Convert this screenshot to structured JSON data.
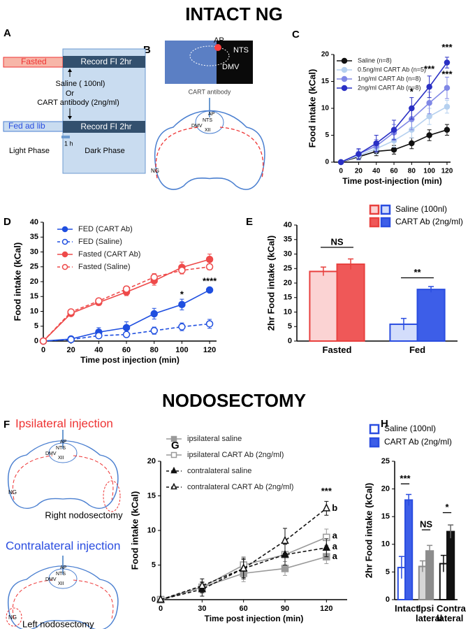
{
  "headings": [
    "INTACT NG",
    "NODOSECTOMY"
  ],
  "panel_labels": [
    "A",
    "B",
    "C",
    "D",
    "E",
    "F",
    "G",
    "H"
  ],
  "diagram_a": {
    "fasted": "Fasted",
    "record_1": "Record FI 2hr",
    "treatment_1": "Saline ( 100nl)",
    "or": "Or",
    "treatment_2": "CART antibody (2ng/ml)",
    "fed": "Fed ad lib",
    "record_2": "Record FI 2hr",
    "hour": "1 h",
    "light": "Light Phase",
    "dark": "Dark Phase"
  },
  "diagram_b": {
    "ap": "AP",
    "nts": "NTS",
    "dmv": "DMV",
    "injection": "CART antibody",
    "ap_2": "AP",
    "nts_2": "NTS",
    "dmv_2": "DMV",
    "xii": "XII",
    "ng": "NG"
  },
  "diagram_f": {
    "ipsi_title": "Ipsilateral injection",
    "ipsi_lesion": "Right nodosectomy",
    "contra_title": "Contralateral injection",
    "contra_lesion": "Left nodosectomy",
    "ap_1": "AP",
    "nts_1": "NTS",
    "dmv_1": "DMV",
    "xii_1": "XII",
    "ng_1": "NG",
    "ap_2": "AP",
    "nts_2": "NTS",
    "dmv_2": "DMV",
    "xii_2": "XII",
    "ng_2": "NG"
  },
  "chart_data": [
    {
      "type": "line",
      "x_label": "Time post-injection (min)",
      "y_label": "Food intake (kCal)",
      "x": [
        0,
        20,
        40,
        60,
        80,
        100,
        120
      ],
      "xlim": [
        -8,
        124
      ],
      "xticks": [
        0,
        20,
        40,
        60,
        80,
        100,
        120
      ],
      "ylim": [
        0,
        20
      ],
      "yticks": [
        0,
        5,
        10,
        15,
        20
      ],
      "series": [
        {
          "name": "Saline (n=8)",
          "color": "#111111",
          "marker": "circle",
          "filled": true,
          "dashed": false,
          "values": [
            0,
            1,
            2,
            2.3,
            3.5,
            5,
            6
          ],
          "errors": [
            0,
            0.6,
            0.8,
            0.8,
            1,
            1,
            1
          ]
        },
        {
          "name": "0.5ng/ml CART Ab (n=5)",
          "color": "#b5d0ef",
          "marker": "circle",
          "filled": true,
          "dashed": false,
          "values": [
            0,
            1.2,
            2.5,
            4,
            6,
            8.5,
            10.3
          ],
          "errors": [
            0,
            0.8,
            1,
            1.2,
            1.5,
            1.5,
            1.2
          ]
        },
        {
          "name": "1ng/ml CART Ab (n=8)",
          "color": "#8088e6",
          "marker": "circle",
          "filled": true,
          "dashed": false,
          "values": [
            0,
            1.5,
            3,
            5.5,
            8,
            11,
            13.8
          ],
          "errors": [
            0,
            0.8,
            1.2,
            1.5,
            2,
            2,
            2
          ]
        },
        {
          "name": "2ng/ml CART Ab (n=8)",
          "color": "#2a30c4",
          "marker": "circle",
          "filled": true,
          "dashed": false,
          "values": [
            0,
            1.5,
            3.5,
            6,
            10,
            14,
            18.5
          ],
          "errors": [
            0,
            1,
            1.5,
            1.8,
            2,
            2,
            1
          ]
        }
      ],
      "annotations": [
        "*",
        "***",
        "***",
        "***"
      ]
    },
    {
      "type": "line",
      "x_label": "Time post injection (min)",
      "y_label": "Food intake  (kCal)",
      "x": [
        0,
        20,
        40,
        60,
        80,
        100,
        120
      ],
      "xlim": [
        0,
        125
      ],
      "xticks": [
        0,
        20,
        40,
        60,
        80,
        100,
        120
      ],
      "ylim": [
        0,
        40
      ],
      "yticks": [
        0,
        5,
        10,
        15,
        20,
        25,
        30,
        35,
        40
      ],
      "series": [
        {
          "name": "FED (CART Ab)",
          "color": "#1f4fe0",
          "marker": "circle",
          "filled": true,
          "dashed": false,
          "values": [
            0,
            0.7,
            3,
            4.5,
            9.2,
            12.3,
            17.2
          ],
          "errors": [
            0,
            0.5,
            1.5,
            2,
            1.8,
            1.8,
            0.8
          ]
        },
        {
          "name": "FED (Saline)",
          "color": "#1f4fe0",
          "marker": "circle",
          "filled": false,
          "dashed": true,
          "values": [
            0,
            0.5,
            1.8,
            2.2,
            3.5,
            4.8,
            5.8
          ],
          "errors": [
            0,
            0.4,
            0.8,
            0.9,
            1.2,
            1.3,
            1.5
          ]
        },
        {
          "name": "Fasted (CART  Ab)",
          "color": "#ee4a4a",
          "marker": "circle",
          "filled": true,
          "dashed": false,
          "values": [
            0,
            9.3,
            13,
            16.5,
            20.3,
            24.8,
            27.5
          ],
          "errors": [
            0,
            0.8,
            1,
            1.2,
            1.5,
            1.8,
            1.8
          ]
        },
        {
          "name": "Fasted (Saline)",
          "color": "#ee4a4a",
          "marker": "circle",
          "filled": false,
          "dashed": true,
          "values": [
            0,
            9.8,
            13.5,
            17.5,
            21.5,
            23.8,
            25
          ],
          "errors": [
            0,
            0.6,
            0.8,
            1,
            1.2,
            1.2,
            1
          ]
        }
      ],
      "annotations": [
        "*",
        "****"
      ]
    },
    {
      "type": "bar",
      "y_label": "2hr Food intake (kCal)",
      "categories": [
        "Fasted",
        "Fed"
      ],
      "ylim": [
        0,
        40
      ],
      "yticks": [
        0,
        5,
        10,
        15,
        20,
        25,
        30,
        35,
        40
      ],
      "series": [
        {
          "name": "Saline (100nl)",
          "colors": [
            "#e8413f",
            "#2a4de0"
          ],
          "fills": [
            "#fbd3d3",
            "#d3ddfb"
          ],
          "values": [
            24,
            5.8
          ],
          "errors": [
            1.5,
            2
          ]
        },
        {
          "name": "CART Ab (2ng/ml)",
          "colors": [
            "#e8413f",
            "#2a4de0"
          ],
          "fills": [
            "#ef5858",
            "#3d5ee8"
          ],
          "values": [
            26.5,
            17.8
          ],
          "errors": [
            1.8,
            1
          ]
        }
      ],
      "annotations": [
        "NS",
        "**"
      ]
    },
    {
      "type": "line",
      "x_label": "Time post injection (min)",
      "y_label": "Food intake (kCal)",
      "x": [
        0,
        30,
        60,
        90,
        120
      ],
      "xlim": [
        0,
        135
      ],
      "xticks": [
        0,
        30,
        60,
        90,
        120
      ],
      "ylim": [
        0,
        20
      ],
      "yticks": [
        0,
        5,
        10,
        15,
        20
      ],
      "series": [
        {
          "name": "ipsilateral saline",
          "color": "#9a9a9a",
          "marker": "square",
          "filled": true,
          "dashed": false,
          "values": [
            0,
            1.8,
            3.8,
            4.5,
            6.2
          ],
          "errors": [
            0,
            0.8,
            1.2,
            1,
            1
          ]
        },
        {
          "name": "ipsilateral CART Ab (2ng/ml)",
          "color": "#9a9a9a",
          "marker": "square",
          "filled": false,
          "dashed": false,
          "values": [
            0,
            1.8,
            5,
            6.5,
            9
          ],
          "errors": [
            0,
            0.8,
            1.2,
            1.5,
            1.2
          ]
        },
        {
          "name": "contralateral saline",
          "color": "#111111",
          "marker": "triangle",
          "filled": true,
          "dashed": true,
          "values": [
            0,
            1.5,
            4.5,
            6.5,
            7.5
          ],
          "errors": [
            0,
            1,
            1.3,
            1.5,
            1.3
          ]
        },
        {
          "name": "contralateral CART Ab  (2ng/ml)",
          "color": "#111111",
          "marker": "triangle",
          "filled": false,
          "dashed": true,
          "values": [
            0,
            2,
            4.5,
            8.5,
            13.2
          ],
          "errors": [
            0,
            1,
            1.5,
            1.8,
            1
          ]
        }
      ],
      "annotations": [
        "***",
        "b",
        "a",
        "a",
        "a"
      ]
    },
    {
      "type": "bar",
      "y_label": "2hr Food intake (kCal)",
      "categories": [
        "Intact",
        "Ipsi lateral",
        "Contra lateral"
      ],
      "ylim": [
        0,
        25
      ],
      "yticks": [
        0,
        5,
        10,
        15,
        20,
        25
      ],
      "series": [
        {
          "name": "Saline  (100nl)",
          "colors": [
            "#2a4de0",
            "#8c8c8c",
            "#111111"
          ],
          "fills": [
            "#ffffff",
            "#d6d6d6",
            "#ffffff"
          ],
          "values": [
            5.8,
            6,
            6.5
          ],
          "errors": [
            2,
            1,
            1.5
          ]
        },
        {
          "name": "CART Ab (2ng/ml)",
          "colors": [
            "#2a4de0",
            "#8c8c8c",
            "#111111"
          ],
          "fills": [
            "#3d5ee8",
            "#8c8c8c",
            "#111111"
          ],
          "values": [
            18,
            8.8,
            12.3
          ],
          "errors": [
            1,
            1,
            1.2
          ]
        }
      ],
      "annotations": [
        "***",
        "NS",
        "*"
      ]
    }
  ]
}
